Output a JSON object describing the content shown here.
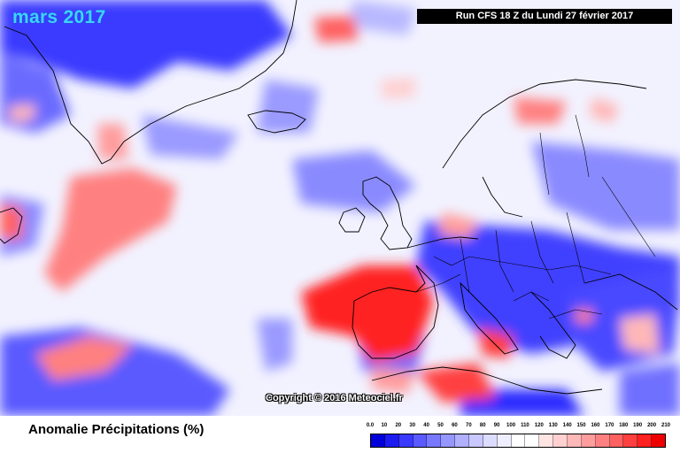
{
  "map": {
    "title": "mars 2017",
    "run_label": "Run CFS 18 Z du Lundi 27 février 2017",
    "copyright": "Copyright © 2016 Meteociel.fr"
  },
  "legend": {
    "title": "Anomalie Précipitations (%)",
    "ticks": [
      "0.0",
      "10",
      "20",
      "30",
      "40",
      "50",
      "60",
      "70",
      "80",
      "90",
      "100",
      "110",
      "120",
      "130",
      "140",
      "150",
      "160",
      "170",
      "180",
      "190",
      "200",
      "210"
    ],
    "colors": [
      "#0000d8",
      "#1c1cf0",
      "#3a3aff",
      "#5a5aff",
      "#7878ff",
      "#9696ff",
      "#b0b0ff",
      "#c8c8ff",
      "#dcdcff",
      "#eeeeff",
      "#ffffff",
      "#ffffff",
      "#ffe4e4",
      "#ffd0d0",
      "#ffb8b8",
      "#ff9c9c",
      "#ff8080",
      "#ff6060",
      "#ff4040",
      "#ff2020",
      "#ee0000"
    ]
  }
}
